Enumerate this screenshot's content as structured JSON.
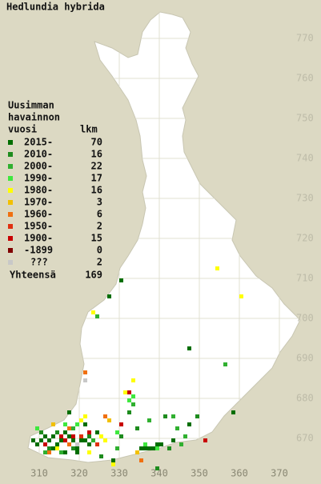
{
  "title": "Hedlundia hybrida",
  "legend": {
    "header": [
      "Uusimman",
      "havainnon",
      "vuosi"
    ],
    "count_header": "lkm",
    "rows": [
      {
        "label": "2015-",
        "count": 70,
        "color": "#006e00"
      },
      {
        "label": "2010-",
        "count": 16,
        "color": "#1e8c1e"
      },
      {
        "label": "2000-",
        "count": 22,
        "color": "#30b030"
      },
      {
        "label": "1990-",
        "count": 17,
        "color": "#3ee83e"
      },
      {
        "label": "1980-",
        "count": 16,
        "color": "#ffff00"
      },
      {
        "label": "1970-",
        "count": 3,
        "color": "#f2c000"
      },
      {
        "label": "1960-",
        "count": 6,
        "color": "#f07010"
      },
      {
        "label": "1950-",
        "count": 2,
        "color": "#e03010"
      },
      {
        "label": "1900-",
        "count": 15,
        "color": "#c80000"
      },
      {
        "label": "-1899",
        "count": 0,
        "color": "#800000"
      },
      {
        "label": "???",
        "count": 2,
        "color": "#c8c8c8"
      }
    ],
    "total_label": "Yhteensä",
    "total": 169
  },
  "grid": {
    "x_labels": [
      310,
      320,
      330,
      340,
      350,
      360,
      370
    ],
    "y_labels": [
      770,
      760,
      750,
      740,
      730,
      720,
      710,
      700,
      690,
      680,
      670
    ]
  },
  "points": [
    [
      308,
      669,
      0
    ],
    [
      309,
      668,
      0
    ],
    [
      310,
      669,
      0
    ],
    [
      311,
      670,
      0
    ],
    [
      312,
      669,
      0
    ],
    [
      313,
      670,
      0
    ],
    [
      314,
      668,
      0
    ],
    [
      315,
      669,
      0
    ],
    [
      316,
      671,
      0
    ],
    [
      317,
      670,
      0
    ],
    [
      318,
      669,
      0
    ],
    [
      319,
      667,
      0
    ],
    [
      320,
      669,
      0
    ],
    [
      321,
      669,
      0
    ],
    [
      322,
      668,
      0
    ],
    [
      324,
      671,
      0
    ],
    [
      313,
      667,
      0
    ],
    [
      316,
      666,
      0
    ],
    [
      319,
      666,
      0
    ],
    [
      328,
      664,
      0
    ],
    [
      335,
      667,
      0
    ],
    [
      336,
      667,
      0
    ],
    [
      337,
      667,
      0
    ],
    [
      338,
      667,
      0
    ],
    [
      339,
      668,
      0
    ],
    [
      340,
      668,
      0
    ],
    [
      343,
      669,
      0
    ],
    [
      347,
      673,
      0
    ],
    [
      358,
      676,
      0
    ],
    [
      317,
      676,
      0
    ],
    [
      321,
      673,
      0
    ],
    [
      330,
      709,
      0
    ],
    [
      327,
      705,
      0
    ],
    [
      347,
      692,
      0
    ],
    [
      310,
      671,
      1
    ],
    [
      312,
      667,
      1
    ],
    [
      314,
      671,
      1
    ],
    [
      318,
      667,
      1
    ],
    [
      322,
      670,
      1
    ],
    [
      325,
      665,
      1
    ],
    [
      342,
      667,
      1
    ],
    [
      349,
      675,
      1
    ],
    [
      341,
      675,
      1
    ],
    [
      334,
      672,
      1
    ],
    [
      330,
      670,
      1
    ],
    [
      339,
      662,
      1
    ],
    [
      332,
      676,
      1
    ],
    [
      311,
      666,
      2
    ],
    [
      315,
      666,
      2
    ],
    [
      318,
      672,
      2
    ],
    [
      323,
      669,
      2
    ],
    [
      333,
      678,
      2
    ],
    [
      337,
      674,
      2
    ],
    [
      343,
      675,
      2
    ],
    [
      345,
      668,
      2
    ],
    [
      344,
      672,
      2
    ],
    [
      356,
      688,
      2
    ],
    [
      324,
      700,
      2
    ],
    [
      346,
      670,
      2
    ],
    [
      329,
      667,
      2
    ],
    [
      309,
      672,
      3
    ],
    [
      316,
      673,
      3
    ],
    [
      319,
      673,
      3
    ],
    [
      332,
      679,
      3
    ],
    [
      333,
      680,
      3
    ],
    [
      336,
      668,
      3
    ],
    [
      329,
      671,
      3
    ],
    [
      339,
      667,
      3
    ],
    [
      314,
      667,
      4
    ],
    [
      320,
      674,
      4
    ],
    [
      321,
      675,
      4
    ],
    [
      325,
      670,
      4
    ],
    [
      326,
      669,
      4
    ],
    [
      354,
      712,
      4
    ],
    [
      360,
      705,
      4
    ],
    [
      323,
      701,
      4
    ],
    [
      333,
      684,
      4
    ],
    [
      331,
      681,
      4
    ],
    [
      328,
      663,
      4
    ],
    [
      322,
      666,
      4
    ],
    [
      313,
      673,
      5
    ],
    [
      327,
      674,
      5
    ],
    [
      334,
      666,
      5
    ],
    [
      321,
      686,
      6
    ],
    [
      312,
      666,
      6
    ],
    [
      317,
      668,
      6
    ],
    [
      326,
      675,
      6
    ],
    [
      317,
      672,
      6
    ],
    [
      335,
      664,
      6
    ],
    [
      320,
      670,
      7
    ],
    [
      324,
      668,
      7
    ],
    [
      311,
      668,
      8
    ],
    [
      315,
      670,
      8
    ],
    [
      318,
      670,
      8
    ],
    [
      322,
      671,
      8
    ],
    [
      330,
      673,
      8
    ],
    [
      351,
      669,
      8
    ],
    [
      332,
      681,
      8
    ],
    [
      316,
      669,
      8
    ],
    [
      321,
      684,
      10
    ],
    [
      319,
      668,
      10
    ]
  ]
}
